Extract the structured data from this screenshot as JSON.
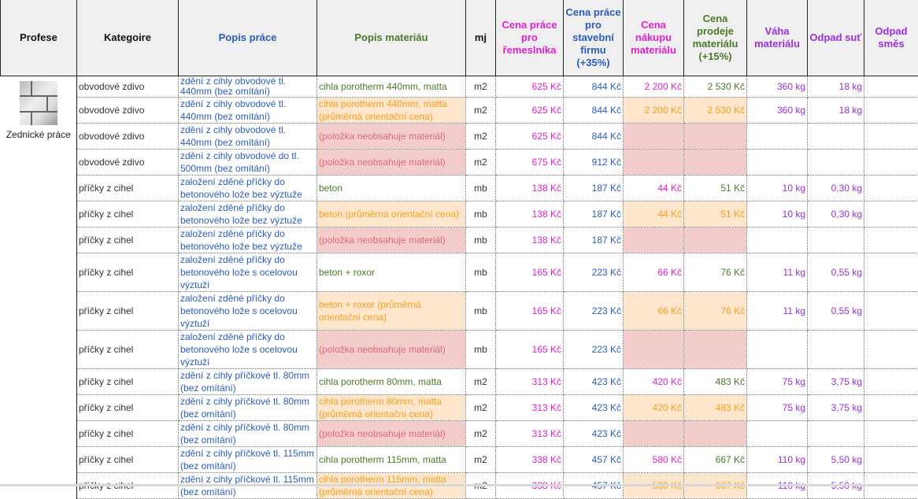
{
  "headers": [
    "Profese",
    "Kategoire",
    "Popis práce",
    "Popis materiáu",
    "mj",
    "Cena práce pro řemeslníka",
    "Cena práce pro stavební firmu (+35%)",
    "Cena nákupu materiálu",
    "Cena prodeje materiálu (+15%)",
    "Váha materiálu",
    "Odpad suť",
    "Odpad směs"
  ],
  "profese": {
    "label": "Zednické práce",
    "icon": "brick-wall-image"
  },
  "colors": {
    "blue": "#2a5cc0",
    "green": "#4a7a2a",
    "pink": "#e020d0",
    "purple": "#9a2ee0",
    "orange": "#f5a020",
    "orange_bg": "#fde6cc",
    "red_bg": "#f3cccc"
  },
  "rows": [
    {
      "type": "normal",
      "kat": "obvodové zdivo",
      "prace": "zdění z cihly obvodové tl. 440mm (bez omítání)",
      "mat": "cihla porotherm 440mm, matta",
      "mj": "m2",
      "c1": "625 Kč",
      "c2": "844 Kč",
      "c3": "2 200 Kč",
      "c4": "2 530 Kč",
      "vaha": "360 kg",
      "sut": "18 kg",
      "smes": ""
    },
    {
      "type": "avg",
      "kat": "obvodové zdivo",
      "prace": "zdění z cihly obvodové tl. 440mm (bez omítání)",
      "mat": "cihla porotherm 440mm, matta (průměrná orientační cena)",
      "mj": "m2",
      "c1": "625 Kč",
      "c2": "844 Kč",
      "c3": "2 200 Kč",
      "c4": "2 530 Kč",
      "vaha": "360 kg",
      "sut": "18 kg",
      "smes": ""
    },
    {
      "type": "none",
      "kat": "obvodové zdivo",
      "prace": "zdění z cihly obvodové tl. 440mm (bez omítání)",
      "mat": "(položka neobsahuje materiál)",
      "mj": "m2",
      "c1": "625 Kč",
      "c2": "844 Kč",
      "c3": "",
      "c4": "",
      "vaha": "",
      "sut": "",
      "smes": ""
    },
    {
      "type": "none",
      "kat": "obvodové zdivo",
      "prace": "zdění z cihly obvodové do tl. 500mm (bez omítání)",
      "mat": "(položka neobsahuje materiál)",
      "mj": "m2",
      "c1": "675 Kč",
      "c2": "912 Kč",
      "c3": "",
      "c4": "",
      "vaha": "",
      "sut": "",
      "smes": ""
    },
    {
      "type": "normal",
      "kat": "příčky z cihel",
      "prace": "založení zděné příčky do betonového lože bez výztuže",
      "mat": "beton",
      "mj": "mb",
      "c1": "138 Kč",
      "c2": "187 Kč",
      "c3": "44 Kč",
      "c4": "51 Kč",
      "vaha": "10 kg",
      "sut": "0,30 kg",
      "smes": ""
    },
    {
      "type": "avg",
      "kat": "příčky z cihel",
      "prace": "založení zděné příčky do betonového lože bez výztuže",
      "mat": "beton (průměrná orientační cena)",
      "mj": "mb",
      "c1": "138 Kč",
      "c2": "187 Kč",
      "c3": "44 Kč",
      "c4": "51 Kč",
      "vaha": "10 kg",
      "sut": "0,30 kg",
      "smes": ""
    },
    {
      "type": "none",
      "kat": "příčky z cihel",
      "prace": "založení zděné příčky do betonového lože bez výztuže",
      "mat": "(položka neobsahuje materiál)",
      "mj": "mb",
      "c1": "138 Kč",
      "c2": "187 Kč",
      "c3": "",
      "c4": "",
      "vaha": "",
      "sut": "",
      "smes": ""
    },
    {
      "type": "normal",
      "kat": "příčky z cihel",
      "prace": "založení zděné příčky do betonového lože s ocelovou výztuží",
      "mat": "beton + roxor",
      "mj": "mb",
      "c1": "165 Kč",
      "c2": "223 Kč",
      "c3": "66 Kč",
      "c4": "76 Kč",
      "vaha": "11 kg",
      "sut": "0,55 kg",
      "smes": ""
    },
    {
      "type": "avg",
      "kat": "příčky z cihel",
      "prace": "založení zděné příčky do betonového lože s ocelovou výztuží",
      "mat": "beton + roxor (průměrná orientační cena)",
      "mj": "mb",
      "c1": "165 Kč",
      "c2": "223 Kč",
      "c3": "66 Kč",
      "c4": "76 Kč",
      "vaha": "11 kg",
      "sut": "0,55 kg",
      "smes": ""
    },
    {
      "type": "none",
      "kat": "příčky z cihel",
      "prace": "založení zděné příčky do betonového lože s ocelovou výztuží",
      "mat": "(položka neobsahuje materiál)",
      "mj": "mb",
      "c1": "165 Kč",
      "c2": "223 Kč",
      "c3": "",
      "c4": "",
      "vaha": "",
      "sut": "",
      "smes": ""
    },
    {
      "type": "normal",
      "kat": "příčky z cihel",
      "prace": "zdění z cihly příčkové tl. 80mm (bez omítání)",
      "mat": "cihla porotherm 80mm, matta",
      "mj": "m2",
      "c1": "313 Kč",
      "c2": "423 Kč",
      "c3": "420 Kč",
      "c4": "483 Kč",
      "vaha": "75 kg",
      "sut": "3,75 kg",
      "smes": ""
    },
    {
      "type": "avg",
      "kat": "příčky z cihel",
      "prace": "zdění z cihly příčkové tl. 80mm (bez omítání)",
      "mat": "cihla porotherm 80mm, matta (průměrná orientační cena)",
      "mj": "m2",
      "c1": "313 Kč",
      "c2": "423 Kč",
      "c3": "420 Kč",
      "c4": "483 Kč",
      "vaha": "75 kg",
      "sut": "3,75 kg",
      "smes": ""
    },
    {
      "type": "none",
      "kat": "příčky z cihel",
      "prace": "zdění z cihly příčkové tl. 80mm (bez omítání)",
      "mat": "(položka neobsahuje materiál)",
      "mj": "m2",
      "c1": "313 Kč",
      "c2": "423 Kč",
      "c3": "",
      "c4": "",
      "vaha": "",
      "sut": "",
      "smes": ""
    },
    {
      "type": "normal",
      "kat": "příčky z cihel",
      "prace": "zdění z cihly příčkové tl. 115mm (bez omítání)",
      "mat": "cihla porotherm 115mm, matta",
      "mj": "m2",
      "c1": "338 Kč",
      "c2": "457 Kč",
      "c3": "580 Kč",
      "c4": "667 Kč",
      "vaha": "110 kg",
      "sut": "5,50 kg",
      "smes": ""
    },
    {
      "type": "avg",
      "kat": "příčky z cihel",
      "prace": "zdění z cihly příčkové tl. 115mm (bez omítání)",
      "mat": "cihla porotherm 115mm, matta (průměrná orientační cena)",
      "mj": "m2",
      "c1": "338 Kč",
      "c2": "457 Kč",
      "c3": "580 Kč",
      "c4": "667 Kč",
      "vaha": "110 kg",
      "sut": "5,50 kg",
      "smes": ""
    }
  ]
}
